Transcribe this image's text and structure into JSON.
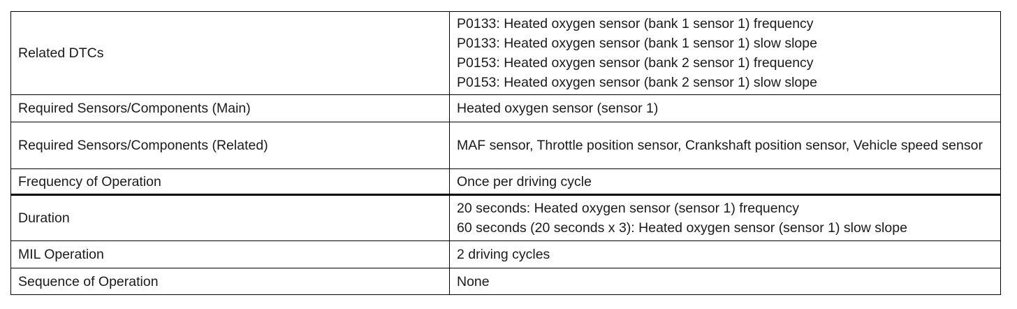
{
  "table": {
    "rows": [
      {
        "label": "Related DTCs",
        "values": [
          "P0133: Heated oxygen sensor (bank 1 sensor 1) frequency",
          "P0133: Heated oxygen sensor (bank 1 sensor 1) slow slope",
          "P0153: Heated oxygen sensor (bank 2 sensor 1) frequency",
          "P0153: Heated oxygen sensor (bank 2 sensor 1) slow slope"
        ]
      },
      {
        "label": "Required Sensors/Components (Main)",
        "values": [
          "Heated oxygen sensor (sensor 1)"
        ]
      },
      {
        "label": "Required Sensors/Components (Related)",
        "values": [
          "MAF sensor, Throttle position sensor, Crankshaft position sensor, Vehicle speed sensor"
        ]
      },
      {
        "label": "Frequency of Operation",
        "values": [
          "Once per driving cycle"
        ]
      },
      {
        "label": "Duration",
        "values": [
          "20 seconds: Heated oxygen sensor (sensor 1) frequency",
          "60 seconds (20 seconds x 3): Heated oxygen sensor (sensor 1) slow slope"
        ]
      },
      {
        "label": "MIL Operation",
        "values": [
          "2 driving cycles"
        ]
      },
      {
        "label": "Sequence of Operation",
        "values": [
          "None"
        ]
      }
    ]
  }
}
